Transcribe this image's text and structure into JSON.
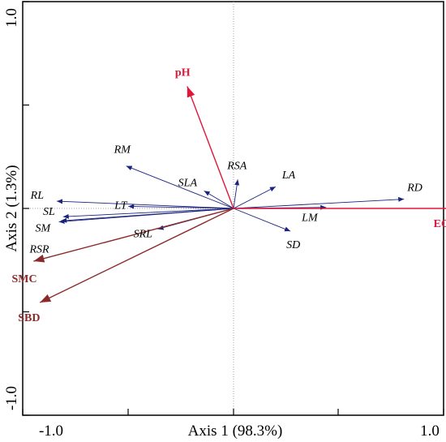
{
  "chart_data": {
    "type": "biplot",
    "xlabel": "Axis 1 (98.3%)",
    "ylabel": "Axis 2 (1.3%)",
    "xlim": [
      -1.0,
      1.0
    ],
    "ylim": [
      -1.0,
      1.0
    ],
    "x_tick_labels": [
      "-1.0",
      "1.0"
    ],
    "y_tick_labels": [
      "1.0",
      "-1.0"
    ],
    "grid": false,
    "colors": {
      "variables": "#1a237e",
      "environment": "#e0173a",
      "soil": "#8b2a2a"
    },
    "vectors": [
      {
        "name": "RL",
        "x": -0.84,
        "y": 0.035,
        "group": "variables"
      },
      {
        "name": "SL",
        "x": -0.81,
        "y": -0.04,
        "group": "variables"
      },
      {
        "name": "SM",
        "x": -0.82,
        "y": -0.06,
        "group": "variables"
      },
      {
        "name": "RSR",
        "x": -0.83,
        "y": -0.065,
        "group": "variables"
      },
      {
        "name": "RM",
        "x": -0.51,
        "y": 0.205,
        "group": "variables"
      },
      {
        "name": "LT",
        "x": -0.5,
        "y": 0.01,
        "group": "variables"
      },
      {
        "name": "SLA",
        "x": -0.14,
        "y": 0.085,
        "group": "variables"
      },
      {
        "name": "RSA",
        "x": 0.02,
        "y": 0.14,
        "group": "variables"
      },
      {
        "name": "LA",
        "x": 0.2,
        "y": 0.105,
        "group": "variables"
      },
      {
        "name": "RD",
        "x": 0.81,
        "y": 0.045,
        "group": "variables"
      },
      {
        "name": "LM",
        "x": 0.44,
        "y": 0.005,
        "group": "variables"
      },
      {
        "name": "SD",
        "x": 0.27,
        "y": -0.11,
        "group": "variables"
      },
      {
        "name": "SRL",
        "x": -0.36,
        "y": -0.1,
        "group": "variables"
      },
      {
        "name": "pH",
        "x": -0.22,
        "y": 0.59,
        "group": "environment"
      },
      {
        "name": "EC",
        "x": 1.07,
        "y": 0.0,
        "group": "environment"
      },
      {
        "name": "SMC",
        "x": -0.95,
        "y": -0.255,
        "group": "soil"
      },
      {
        "name": "SBD",
        "x": -0.92,
        "y": -0.455,
        "group": "soil"
      }
    ]
  }
}
